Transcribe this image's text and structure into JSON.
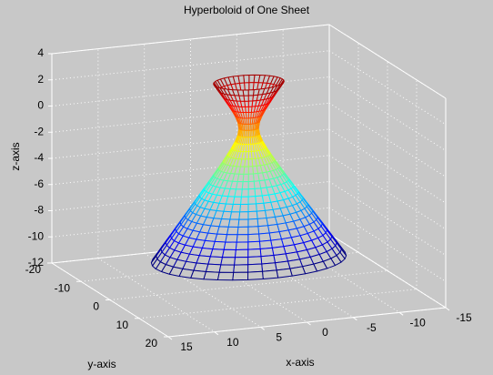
{
  "chart_data": {
    "type": "mesh3d",
    "title": "Hyperboloid of One Sheet",
    "xlabel": "x-axis",
    "ylabel": "y-axis",
    "zlabel": "z-axis",
    "xlim": [
      -15,
      15
    ],
    "ylim": [
      -20,
      20
    ],
    "zlim": [
      -12,
      4
    ],
    "xticks": [
      -15,
      -10,
      -5,
      0,
      5,
      10,
      15
    ],
    "yticks": [
      -20,
      -10,
      0,
      10,
      20
    ],
    "zticks": [
      -12,
      -10,
      -8,
      -6,
      -4,
      -2,
      0,
      2,
      4
    ],
    "grid": true,
    "colormap": "jet",
    "z": [
      -10,
      -9.5,
      -9,
      -8.5,
      -8,
      -7.5,
      -7,
      -6.5,
      -6,
      -5.5,
      -5,
      -4.5,
      -4,
      -3.5,
      -3,
      -2.5,
      -2,
      -1.5,
      -1,
      -0.5,
      0,
      0.5,
      1,
      1.5,
      2,
      2.5,
      3,
      3.5
    ],
    "radius": [
      10.05,
      9.55,
      9.06,
      8.56,
      8.06,
      7.57,
      7.07,
      6.58,
      6.08,
      5.59,
      5.1,
      4.61,
      4.12,
      3.64,
      3.16,
      2.69,
      2.24,
      1.8,
      1.41,
      1.12,
      1,
      1.12,
      1.41,
      1.8,
      2.24,
      2.69,
      3.16,
      3.64
    ]
  }
}
